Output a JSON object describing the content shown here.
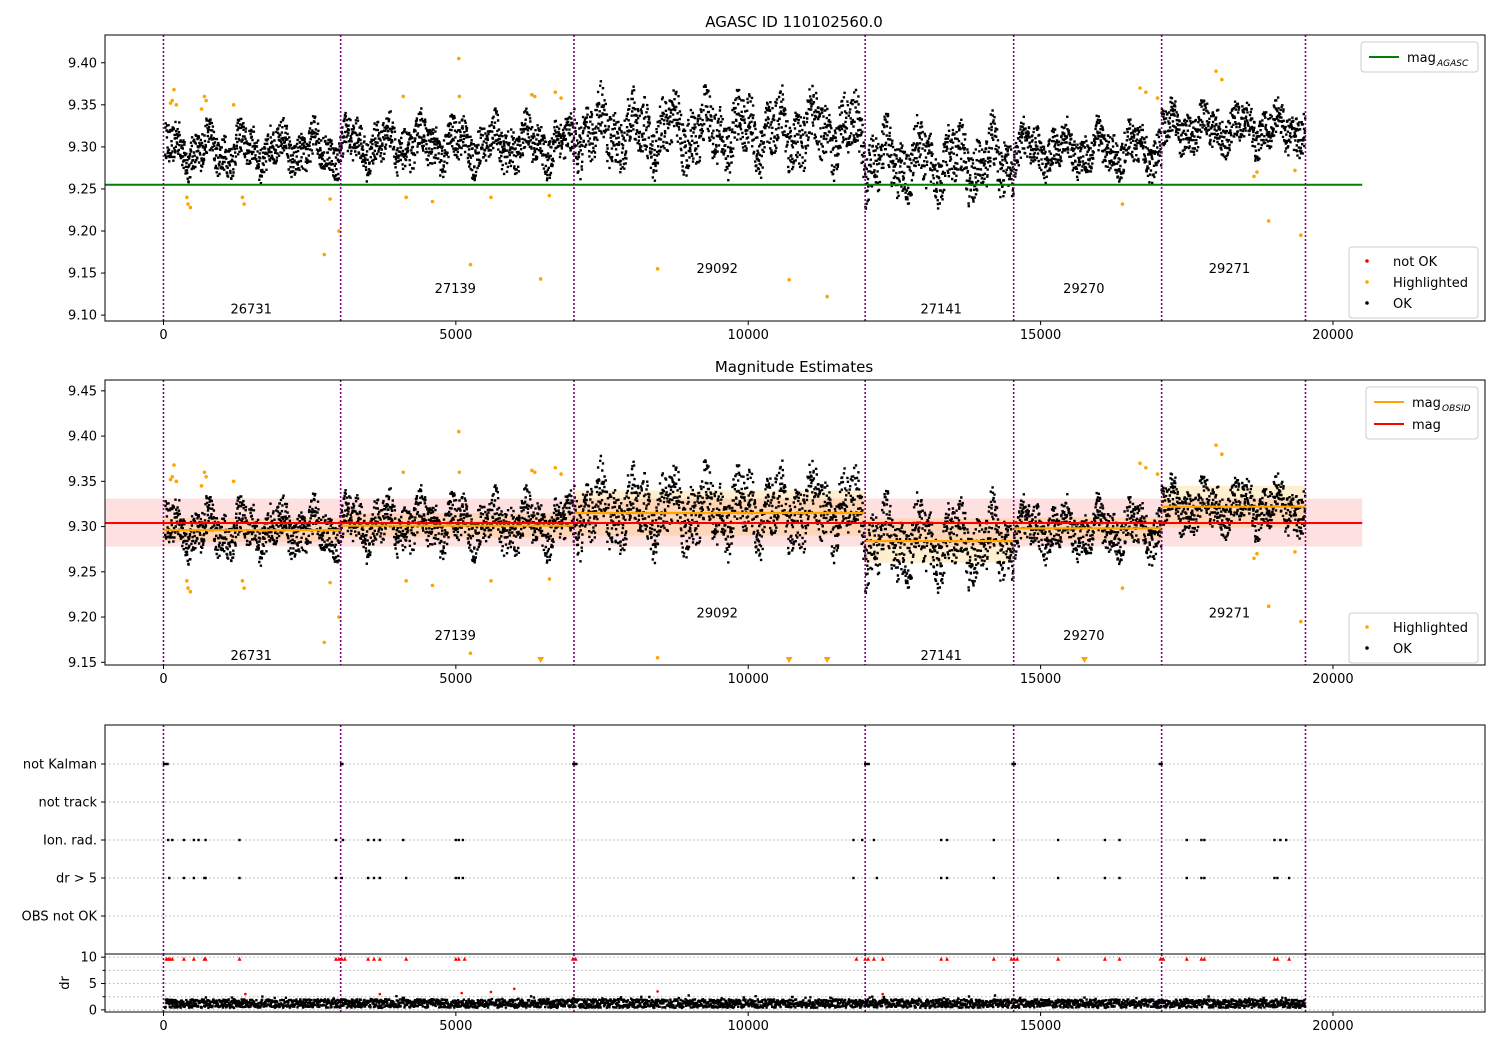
{
  "figure": {
    "colors": {
      "ok": "#000000",
      "highlighted": "#ffa500",
      "not_ok": "#ff0000",
      "obsid_boundary": "#800080",
      "mag_agasc": "#008000",
      "mag": "#ff0000",
      "mag_obsid": "#ffa500"
    }
  },
  "chart_data": [
    {
      "id": "agasc",
      "type": "scatter",
      "title": "AGASC ID 110102560.0",
      "xlim": [
        -1000,
        22600
      ],
      "ylim": [
        9.093,
        9.433
      ],
      "xticks": [
        "0",
        "5000",
        "10000",
        "15000",
        "20000"
      ],
      "yticks": [
        "9.10",
        "9.15",
        "9.20",
        "9.25",
        "9.30",
        "9.35",
        "9.40"
      ],
      "obsid_boundaries": [
        0,
        3030,
        7020,
        12000,
        14540,
        17070,
        19530
      ],
      "obsid_labels": [
        {
          "text": "26731",
          "x": 1500,
          "y": 9.108
        },
        {
          "text": "27139",
          "x": 4990,
          "y": 9.132
        },
        {
          "text": "29092",
          "x": 9470,
          "y": 9.156
        },
        {
          "text": "27141",
          "x": 13300,
          "y": 9.108
        },
        {
          "text": "29270",
          "x": 15740,
          "y": 9.132
        },
        {
          "text": "29271",
          "x": 18230,
          "y": 9.156
        }
      ],
      "mag_agasc": {
        "value": 9.255,
        "xrange": [
          -1000,
          20500
        ]
      },
      "upper_legend": [
        {
          "label": "mag",
          "sub": "AGASC",
          "color": "#008000"
        }
      ],
      "lower_legend": [
        {
          "label": "not OK",
          "color": "#ff0000"
        },
        {
          "label": "Highlighted",
          "color": "#ffa500"
        },
        {
          "label": "OK",
          "color": "#000000"
        }
      ],
      "ok_segments": [
        {
          "x0": 30,
          "x1": 3030,
          "mean": 9.297,
          "amp": 0.038
        },
        {
          "x0": 3030,
          "x1": 7020,
          "mean": 9.303,
          "amp": 0.04
        },
        {
          "x0": 7020,
          "x1": 12000,
          "mean": 9.318,
          "amp": 0.055
        },
        {
          "x0": 12000,
          "x1": 14540,
          "mean": 9.282,
          "amp": 0.055
        },
        {
          "x0": 14540,
          "x1": 17070,
          "mean": 9.297,
          "amp": 0.038
        },
        {
          "x0": 17070,
          "x1": 19530,
          "mean": 9.322,
          "amp": 0.038
        }
      ],
      "highlighted_points": [
        [
          120,
          9.352
        ],
        [
          150,
          9.355
        ],
        [
          180,
          9.368
        ],
        [
          220,
          9.35
        ],
        [
          400,
          9.24
        ],
        [
          420,
          9.232
        ],
        [
          460,
          9.228
        ],
        [
          650,
          9.345
        ],
        [
          700,
          9.36
        ],
        [
          730,
          9.355
        ],
        [
          1200,
          9.35
        ],
        [
          1350,
          9.24
        ],
        [
          1380,
          9.232
        ],
        [
          2750,
          9.172
        ],
        [
          2850,
          9.238
        ],
        [
          3000,
          9.2
        ],
        [
          4100,
          9.36
        ],
        [
          4150,
          9.24
        ],
        [
          4600,
          9.235
        ],
        [
          5050,
          9.405
        ],
        [
          5060,
          9.36
        ],
        [
          5250,
          9.16
        ],
        [
          5600,
          9.24
        ],
        [
          6300,
          9.362
        ],
        [
          6350,
          9.36
        ],
        [
          6450,
          9.143
        ],
        [
          6600,
          9.242
        ],
        [
          6700,
          9.365
        ],
        [
          6800,
          9.358
        ],
        [
          8450,
          9.155
        ],
        [
          10700,
          9.142
        ],
        [
          11350,
          9.122
        ],
        [
          16400,
          9.232
        ],
        [
          16700,
          9.37
        ],
        [
          16800,
          9.365
        ],
        [
          17000,
          9.358
        ],
        [
          18000,
          9.39
        ],
        [
          18100,
          9.38
        ],
        [
          18650,
          9.265
        ],
        [
          18700,
          9.27
        ],
        [
          18900,
          9.212
        ],
        [
          19350,
          9.272
        ],
        [
          19450,
          9.195
        ]
      ]
    },
    {
      "id": "estimates",
      "type": "scatter",
      "title": "Magnitude Estimates",
      "xlim": [
        -1000,
        22600
      ],
      "ylim": [
        9.147,
        9.462
      ],
      "xticks": [
        "0",
        "5000",
        "10000",
        "15000",
        "20000"
      ],
      "yticks": [
        "9.15",
        "9.20",
        "9.25",
        "9.30",
        "9.35",
        "9.40",
        "9.45"
      ],
      "obsid_boundaries": [
        0,
        3030,
        7020,
        12000,
        14540,
        17070,
        19530
      ],
      "obsid_labels": [
        {
          "text": "26731",
          "x": 1500,
          "y": 9.158
        },
        {
          "text": "27139",
          "x": 4990,
          "y": 9.18
        },
        {
          "text": "29092",
          "x": 9470,
          "y": 9.205
        },
        {
          "text": "27141",
          "x": 13300,
          "y": 9.158
        },
        {
          "text": "29270",
          "x": 15740,
          "y": 9.18
        },
        {
          "text": "29271",
          "x": 18230,
          "y": 9.205
        }
      ],
      "mag": {
        "value": 9.304,
        "band": [
          9.278,
          9.331
        ],
        "xrange": [
          -1000,
          20500
        ]
      },
      "mag_obsid": [
        {
          "x0": 0,
          "x1": 3030,
          "value": 9.296,
          "band": [
            9.283,
            9.309
          ]
        },
        {
          "x0": 3030,
          "x1": 7020,
          "value": 9.301,
          "band": [
            9.288,
            9.315
          ]
        },
        {
          "x0": 7020,
          "x1": 12000,
          "value": 9.315,
          "band": [
            9.29,
            9.34
          ]
        },
        {
          "x0": 12000,
          "x1": 14540,
          "value": 9.284,
          "band": [
            9.26,
            9.309
          ]
        },
        {
          "x0": 14540,
          "x1": 17070,
          "value": 9.298,
          "band": [
            9.285,
            9.31
          ]
        },
        {
          "x0": 17070,
          "x1": 19530,
          "value": 9.322,
          "band": [
            9.299,
            9.345
          ]
        }
      ],
      "upper_legend": [
        {
          "label": "mag",
          "sub": "OBSID",
          "color": "#ffa500"
        },
        {
          "label": "mag",
          "sub": "",
          "color": "#ff0000"
        }
      ],
      "lower_legend": [
        {
          "label": "Highlighted",
          "color": "#ffa500"
        },
        {
          "label": "OK",
          "color": "#000000"
        }
      ],
      "offscale_markers": [
        6450,
        10700,
        11350,
        15750
      ]
    },
    {
      "id": "flags",
      "type": "scatter",
      "categories": [
        "not Kalman",
        "not track",
        "Ion. rad.",
        "dr > 5",
        "OBS not OK"
      ],
      "xlim": [
        -1000,
        22600
      ],
      "obsid_boundaries": [
        0,
        3030,
        7020,
        12000,
        14540,
        17070,
        19530
      ],
      "flag_points": {
        "not Kalman": [
          10,
          40,
          70,
          3040,
          3060,
          7010,
          7040,
          7060,
          12000,
          12030,
          12060,
          14520,
          14560,
          17040,
          17070
        ],
        "Ion. rad.": [
          80,
          150,
          350,
          520,
          600,
          720,
          1300,
          2950,
          3070,
          3500,
          3600,
          3700,
          4100,
          5000,
          5050,
          5120,
          11800,
          11950,
          12150,
          13300,
          13400,
          14200,
          15300,
          16100,
          16350,
          17500,
          17750,
          17800,
          19000,
          19100,
          19200
        ],
        "dr > 5": [
          100,
          350,
          520,
          700,
          720,
          1300,
          2950,
          3050,
          3500,
          3600,
          3700,
          4150,
          5000,
          5050,
          5120,
          11800,
          12200,
          13300,
          13400,
          14200,
          15300,
          16100,
          16350,
          17500,
          17750,
          17800,
          19000,
          19050,
          19250
        ]
      }
    },
    {
      "id": "dr",
      "type": "scatter",
      "ylabel": "dr",
      "xlim": [
        -1000,
        22600
      ],
      "ylim": [
        -0.4,
        10.6
      ],
      "xticks": [
        "0",
        "5000",
        "10000",
        "15000",
        "20000"
      ],
      "yticks": [
        "0",
        "5",
        "10"
      ],
      "obsid_boundaries": [
        0,
        3030,
        7020,
        12000,
        14540,
        17070,
        19530
      ],
      "clipped_red_points": [
        50,
        80,
        110,
        150,
        350,
        520,
        700,
        720,
        1300,
        2950,
        3000,
        3050,
        3100,
        3500,
        3600,
        3700,
        4150,
        5000,
        5050,
        5150,
        7000,
        7050,
        11850,
        12000,
        12050,
        12150,
        12300,
        13300,
        13400,
        14200,
        14500,
        14550,
        14600,
        15300,
        16100,
        16350,
        17050,
        17100,
        17500,
        17750,
        17800,
        19000,
        19050,
        19250
      ],
      "red_points": [
        [
          1400,
          3.0
        ],
        [
          3700,
          3.0
        ],
        [
          5100,
          3.2
        ],
        [
          5600,
          3.4
        ],
        [
          6000,
          4.0
        ],
        [
          8450,
          3.5
        ],
        [
          12300,
          3.0
        ]
      ]
    }
  ]
}
